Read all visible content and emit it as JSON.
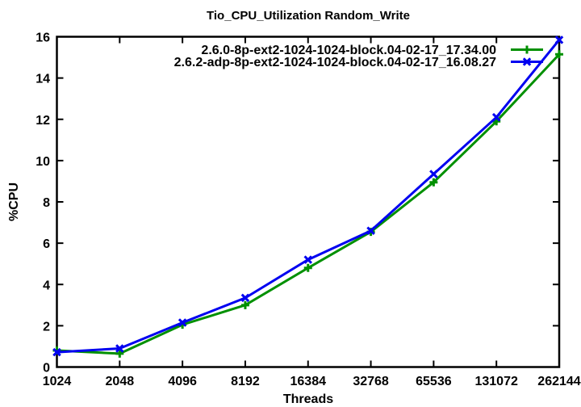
{
  "chart_data": {
    "type": "line",
    "title": "Tio_CPU_Utilization Random_Write",
    "xlabel": "Threads",
    "ylabel": "%CPU",
    "categories": [
      "1024",
      "2048",
      "4096",
      "8192",
      "16384",
      "32768",
      "65536",
      "131072",
      "262144"
    ],
    "x_scale": "log2-categorical",
    "ylim": [
      0,
      16
    ],
    "ytick_step": 2,
    "grid": false,
    "legend_position": "top-right-inside",
    "series": [
      {
        "name": "2.6.0-8p-ext2-1024-1024-block.04-02-17_17.34.00",
        "color": "#009000",
        "marker": "plus",
        "values": [
          0.8,
          0.65,
          2.05,
          3.0,
          4.8,
          6.55,
          8.95,
          11.9,
          15.15
        ]
      },
      {
        "name": "2.6.2-adp-8p-ext2-1024-1024-block.04-02-17_16.08.27",
        "color": "#0000f0",
        "marker": "x",
        "values": [
          0.72,
          0.9,
          2.15,
          3.35,
          5.2,
          6.6,
          9.35,
          12.1,
          15.85
        ]
      }
    ],
    "frame_color": "#000000",
    "background_color": "#ffffff"
  }
}
